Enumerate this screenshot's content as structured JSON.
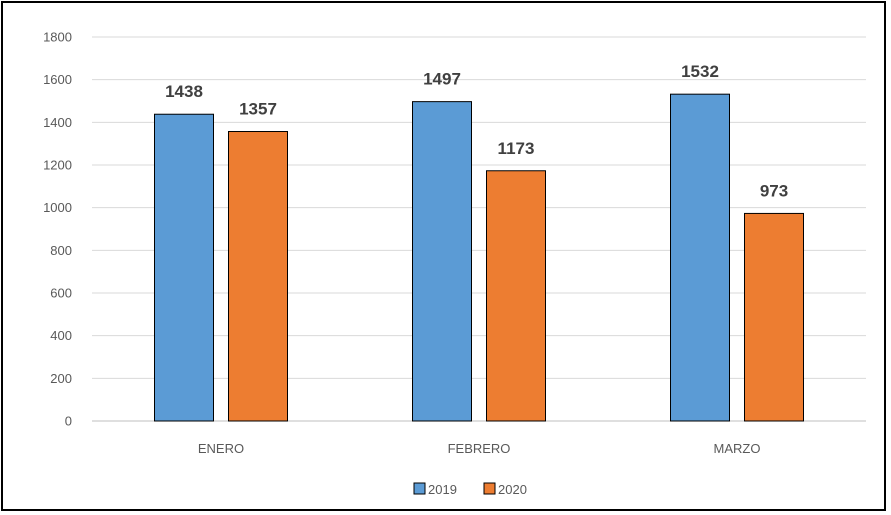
{
  "chart_data": {
    "type": "bar",
    "categories": [
      "ENERO",
      "FEBRERO",
      "MARZO"
    ],
    "series": [
      {
        "name": "2019",
        "values": [
          1438,
          1497,
          1532
        ],
        "color": "#5B9BD5"
      },
      {
        "name": "2020",
        "values": [
          1357,
          1173,
          973
        ],
        "color": "#ED7D31"
      }
    ],
    "yticks": [
      0,
      200,
      400,
      600,
      800,
      1000,
      1200,
      1400,
      1600,
      1800
    ],
    "ylim": [
      0,
      1800
    ],
    "grid": true,
    "legend": "bottom",
    "data_labels": true,
    "title": "",
    "xlabel": "",
    "ylabel": ""
  }
}
